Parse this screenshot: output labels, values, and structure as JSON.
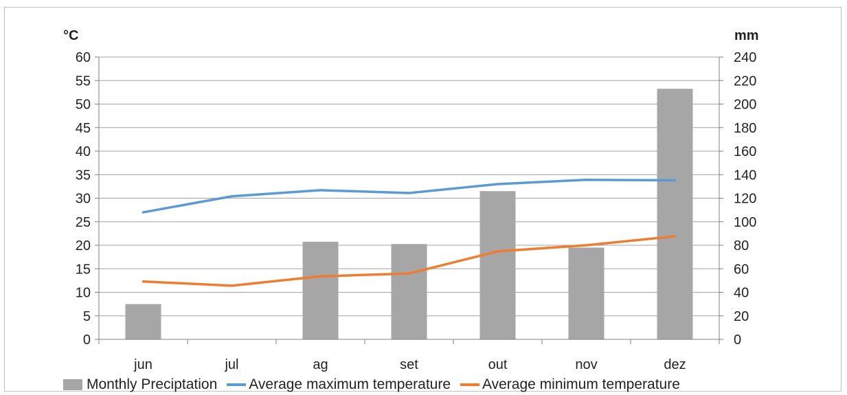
{
  "chart_data": {
    "type": "bar",
    "categories": [
      "jun",
      "jul",
      "ag",
      "set",
      "out",
      "nov",
      "dez"
    ],
    "left_axis": {
      "unit_label": "°C",
      "ticks": [
        "0",
        "5",
        "10",
        "15",
        "20",
        "25",
        "30",
        "35",
        "40",
        "45",
        "50",
        "55",
        "60"
      ],
      "range": [
        0,
        60
      ]
    },
    "right_axis": {
      "unit_label": "mm",
      "ticks": [
        "0",
        "20",
        "40",
        "60",
        "80",
        "100",
        "120",
        "140",
        "160",
        "180",
        "200",
        "220",
        "240"
      ],
      "range": [
        0,
        240
      ]
    },
    "series": [
      {
        "name": "Monthly Preciptation",
        "kind": "bar",
        "axis": "right",
        "color": "#a6a6a6",
        "values": [
          30,
          0,
          83,
          81,
          126,
          78,
          213
        ]
      },
      {
        "name": "Average maximum temperature",
        "kind": "line",
        "axis": "left",
        "color": "#5b9bd5",
        "values": [
          27,
          30.4,
          31.7,
          31.1,
          33,
          33.9,
          33.8
        ]
      },
      {
        "name": "Average minimum temperature",
        "kind": "line",
        "axis": "left",
        "color": "#ed7d31",
        "values": [
          12.3,
          11.4,
          13.4,
          14,
          18.7,
          20,
          21.9
        ]
      }
    ],
    "grid": true,
    "legend_position": "bottom"
  }
}
